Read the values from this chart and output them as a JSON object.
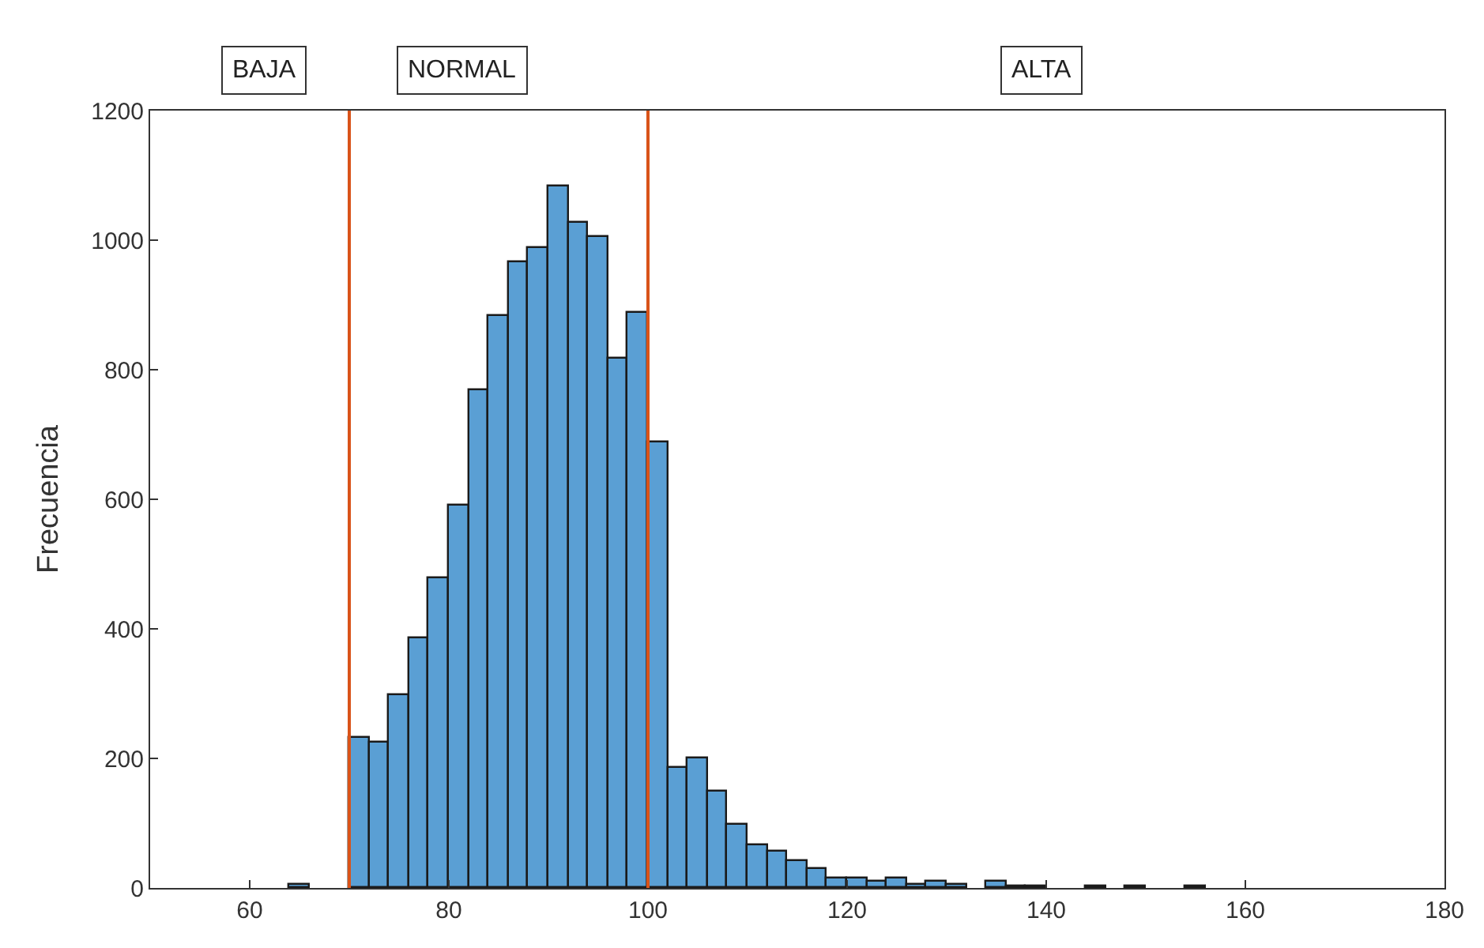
{
  "chart_data": {
    "type": "histogram",
    "ylabel": "Frecuencia",
    "bins": [
      64,
      66,
      68,
      70,
      72,
      74,
      76,
      78,
      80,
      82,
      84,
      86,
      88,
      90,
      92,
      94,
      96,
      98,
      100,
      102,
      104,
      106,
      108,
      110,
      112,
      114,
      116,
      118,
      120,
      122,
      124,
      126,
      128,
      130,
      132,
      134,
      136,
      138,
      140,
      142,
      144,
      146,
      148,
      150,
      152,
      154,
      156
    ],
    "values": [
      5,
      0,
      0,
      232,
      224,
      297,
      385,
      479,
      591,
      768,
      883,
      966,
      989,
      1082,
      1026,
      1004,
      818,
      887,
      687,
      186,
      200,
      148,
      98,
      65,
      55,
      42,
      29,
      14,
      14,
      10,
      14,
      5,
      10,
      5,
      0,
      10,
      2,
      2,
      0,
      0,
      2,
      0,
      2,
      0,
      0,
      2
    ],
    "color": "#5a9fd4",
    "xlim": [
      50,
      180
    ],
    "xticks": [
      60,
      80,
      100,
      120,
      140,
      160,
      180
    ],
    "ylim": [
      0,
      1200
    ],
    "yticks": [
      0,
      200,
      400,
      600,
      800,
      1000,
      1200
    ],
    "ref_lines": [
      {
        "axis": "x",
        "value": 70,
        "color": "#d95319"
      },
      {
        "axis": "x",
        "value": 100,
        "color": "#d95319"
      }
    ],
    "annotations": [
      "BAJA",
      "NORMAL",
      "ALTA"
    ]
  }
}
